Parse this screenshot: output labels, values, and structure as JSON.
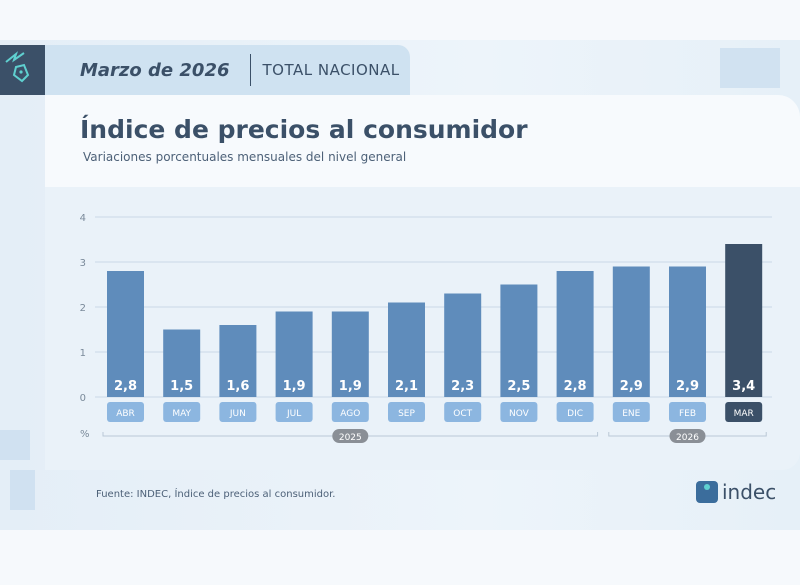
{
  "header": {
    "period": "Marzo de 2026",
    "scope": "TOTAL NACIONAL"
  },
  "title": "Índice de precios al consumidor",
  "subtitle": "Variaciones porcentuales mensuales del nivel general",
  "footer": {
    "source": "Fuente: INDEC, Índice de precios al consumidor.",
    "logo": "indec"
  },
  "colors": {
    "bar": "#5f8cbb",
    "highlight": "#3b5068",
    "label_bg": "#8cb6e0"
  },
  "chart_data": {
    "type": "bar",
    "title": "Índice de precios al consumidor",
    "categories": [
      "ABR",
      "MAY",
      "JUN",
      "JUL",
      "AGO",
      "SEP",
      "OCT",
      "NOV",
      "DIC",
      "ENE",
      "FEB",
      "MAR"
    ],
    "values": [
      2.8,
      1.5,
      1.6,
      1.9,
      1.9,
      2.1,
      2.3,
      2.5,
      2.8,
      2.9,
      2.9,
      3.4
    ],
    "value_labels": [
      "2,8",
      "1,5",
      "1,6",
      "1,9",
      "1,9",
      "2,1",
      "2,3",
      "2,5",
      "2,8",
      "2,9",
      "2,9",
      "3,4"
    ],
    "ylabel": "%",
    "ylim": [
      0,
      4
    ],
    "yticks": [
      "0",
      "1",
      "2",
      "3",
      "4"
    ],
    "groups": [
      {
        "label": "2025",
        "from": 0,
        "to": 8
      },
      {
        "label": "2026",
        "from": 9,
        "to": 11
      }
    ],
    "highlight_index": 11,
    "grid": true
  }
}
